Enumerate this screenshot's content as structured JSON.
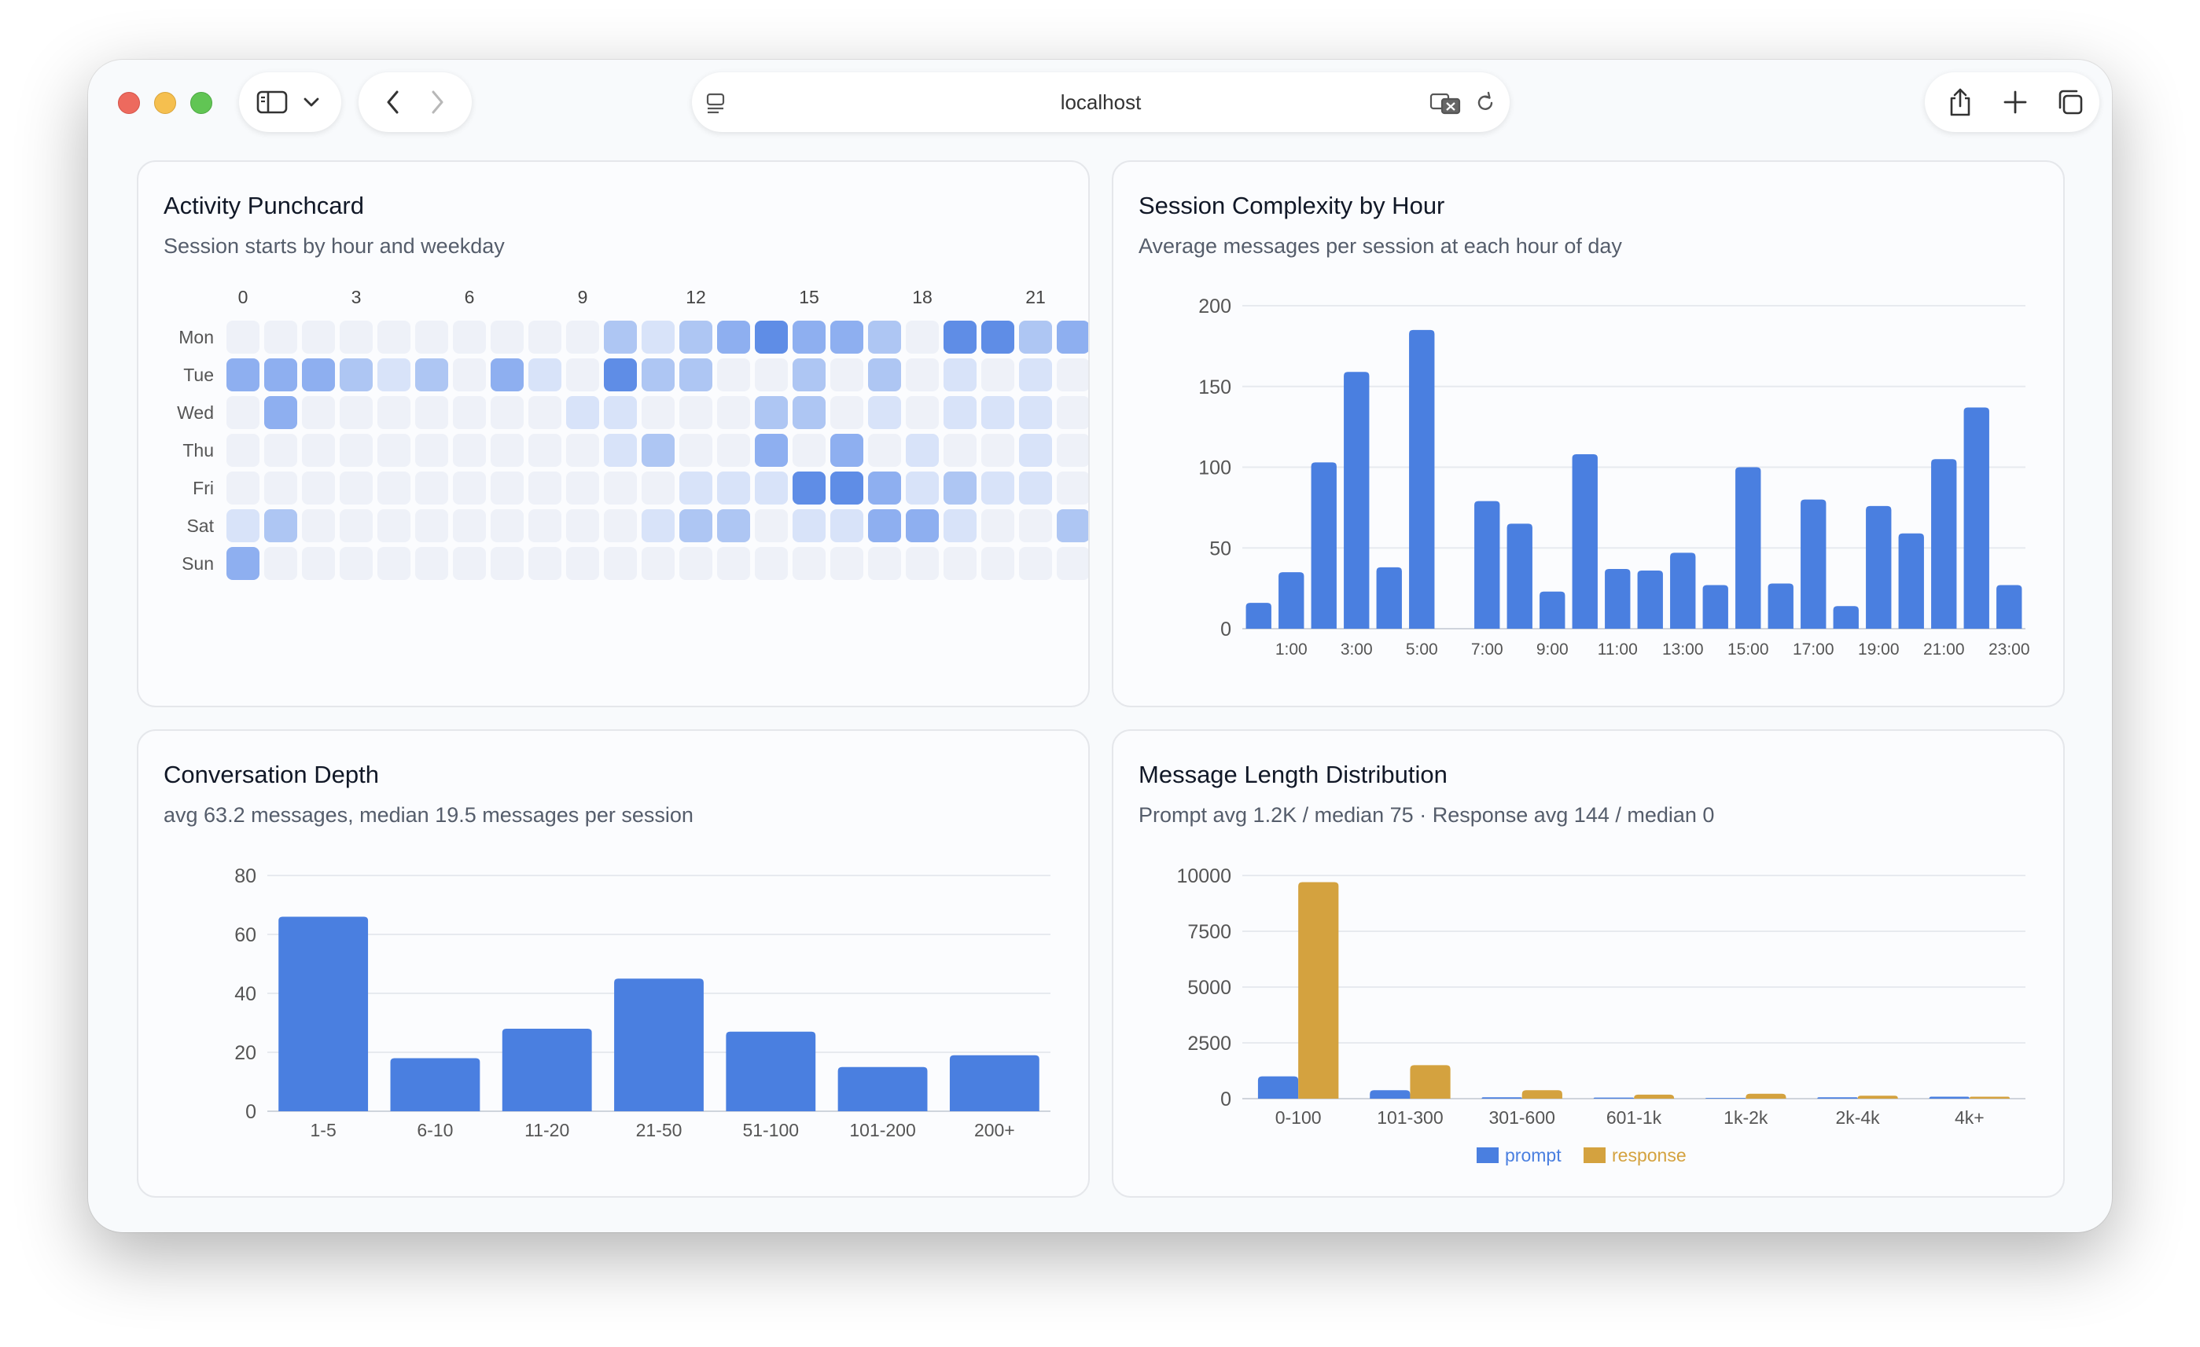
{
  "browser": {
    "url": "localhost"
  },
  "punchcard": {
    "title": "Activity Punchcard",
    "subtitle": "Session starts by hour and weekday",
    "hour_labels": [
      "0",
      "3",
      "6",
      "9",
      "12",
      "15",
      "18",
      "21"
    ],
    "days": [
      "Mon",
      "Tue",
      "Wed",
      "Thu",
      "Fri",
      "Sat",
      "Sun"
    ],
    "levels": [
      [
        0,
        0,
        0,
        0,
        0,
        0,
        0,
        0,
        0,
        0,
        2,
        1,
        2,
        3,
        4,
        3,
        3,
        2,
        0,
        4,
        4,
        2,
        3
      ],
      [
        3,
        3,
        3,
        2,
        1,
        2,
        0,
        3,
        1,
        0,
        4,
        2,
        2,
        0,
        0,
        2,
        0,
        2,
        0,
        1,
        0,
        1,
        0
      ],
      [
        0,
        3,
        0,
        0,
        0,
        0,
        0,
        0,
        0,
        1,
        1,
        0,
        0,
        0,
        2,
        2,
        0,
        1,
        0,
        1,
        1,
        1,
        0
      ],
      [
        0,
        0,
        0,
        0,
        0,
        0,
        0,
        0,
        0,
        0,
        1,
        2,
        0,
        0,
        3,
        0,
        3,
        0,
        1,
        0,
        0,
        1,
        0
      ],
      [
        0,
        0,
        0,
        0,
        0,
        0,
        0,
        0,
        0,
        0,
        0,
        0,
        1,
        1,
        1,
        4,
        4,
        3,
        1,
        2,
        1,
        1,
        0
      ],
      [
        1,
        2,
        0,
        0,
        0,
        0,
        0,
        0,
        0,
        0,
        0,
        1,
        2,
        2,
        0,
        1,
        1,
        3,
        3,
        1,
        0,
        0,
        2
      ],
      [
        3,
        0,
        0,
        0,
        0,
        0,
        0,
        0,
        0,
        0,
        0,
        0,
        0,
        0,
        0,
        0,
        0,
        0,
        0,
        0,
        0,
        0,
        0
      ]
    ],
    "level_colors": [
      "#eef1f8",
      "#d8e3f9",
      "#aec6f3",
      "#8eaff0",
      "#5f8de6"
    ]
  },
  "complexity": {
    "title": "Session Complexity by Hour",
    "subtitle": "Average messages per session at each hour of day",
    "chart_data": {
      "type": "bar",
      "categories": [
        "0:00",
        "1:00",
        "2:00",
        "3:00",
        "4:00",
        "5:00",
        "6:00",
        "7:00",
        "8:00",
        "9:00",
        "10:00",
        "11:00",
        "12:00",
        "13:00",
        "14:00",
        "15:00",
        "16:00",
        "17:00",
        "18:00",
        "19:00",
        "20:00",
        "21:00",
        "22:00",
        "23:00"
      ],
      "tick_labels": [
        "1:00",
        "3:00",
        "5:00",
        "7:00",
        "9:00",
        "11:00",
        "13:00",
        "15:00",
        "17:00",
        "19:00",
        "21:00",
        "23:00"
      ],
      "values": [
        16,
        35,
        103,
        159,
        38,
        185,
        0,
        79,
        65,
        23,
        108,
        37,
        36,
        47,
        27,
        100,
        28,
        80,
        14,
        76,
        59,
        105,
        137,
        27
      ],
      "ylim": [
        0,
        200
      ],
      "y_ticks": [
        0,
        50,
        100,
        150,
        200
      ],
      "color": "#4a7fe0",
      "grid": true
    }
  },
  "depth": {
    "title": "Conversation Depth",
    "subtitle": "avg 63.2 messages, median 19.5 messages per session",
    "chart_data": {
      "type": "bar",
      "categories": [
        "1-5",
        "6-10",
        "11-20",
        "21-50",
        "51-100",
        "101-200",
        "200+"
      ],
      "values": [
        66,
        18,
        28,
        45,
        27,
        15,
        19
      ],
      "ylim": [
        0,
        80
      ],
      "y_ticks": [
        0,
        20,
        40,
        60,
        80
      ],
      "color": "#4a7fe0",
      "grid": true
    }
  },
  "length": {
    "title": "Message Length Distribution",
    "subtitle": "Prompt avg 1.2K / median 75 · Response avg 144 / median 0",
    "chart_data": {
      "type": "bar",
      "categories": [
        "0-100",
        "101-300",
        "301-600",
        "601-1k",
        "1k-2k",
        "2k-4k",
        "4k+"
      ],
      "series": [
        {
          "name": "prompt",
          "values": [
            1000,
            380,
            60,
            50,
            30,
            60,
            90
          ],
          "color": "#4a7fe0"
        },
        {
          "name": "response",
          "values": [
            9700,
            1500,
            380,
            180,
            220,
            130,
            90
          ],
          "color": "#d4a23f"
        }
      ],
      "ylim": [
        0,
        10000
      ],
      "y_ticks": [
        0,
        2500,
        5000,
        7500,
        10000
      ],
      "legend": "bottom",
      "grid": true
    }
  }
}
